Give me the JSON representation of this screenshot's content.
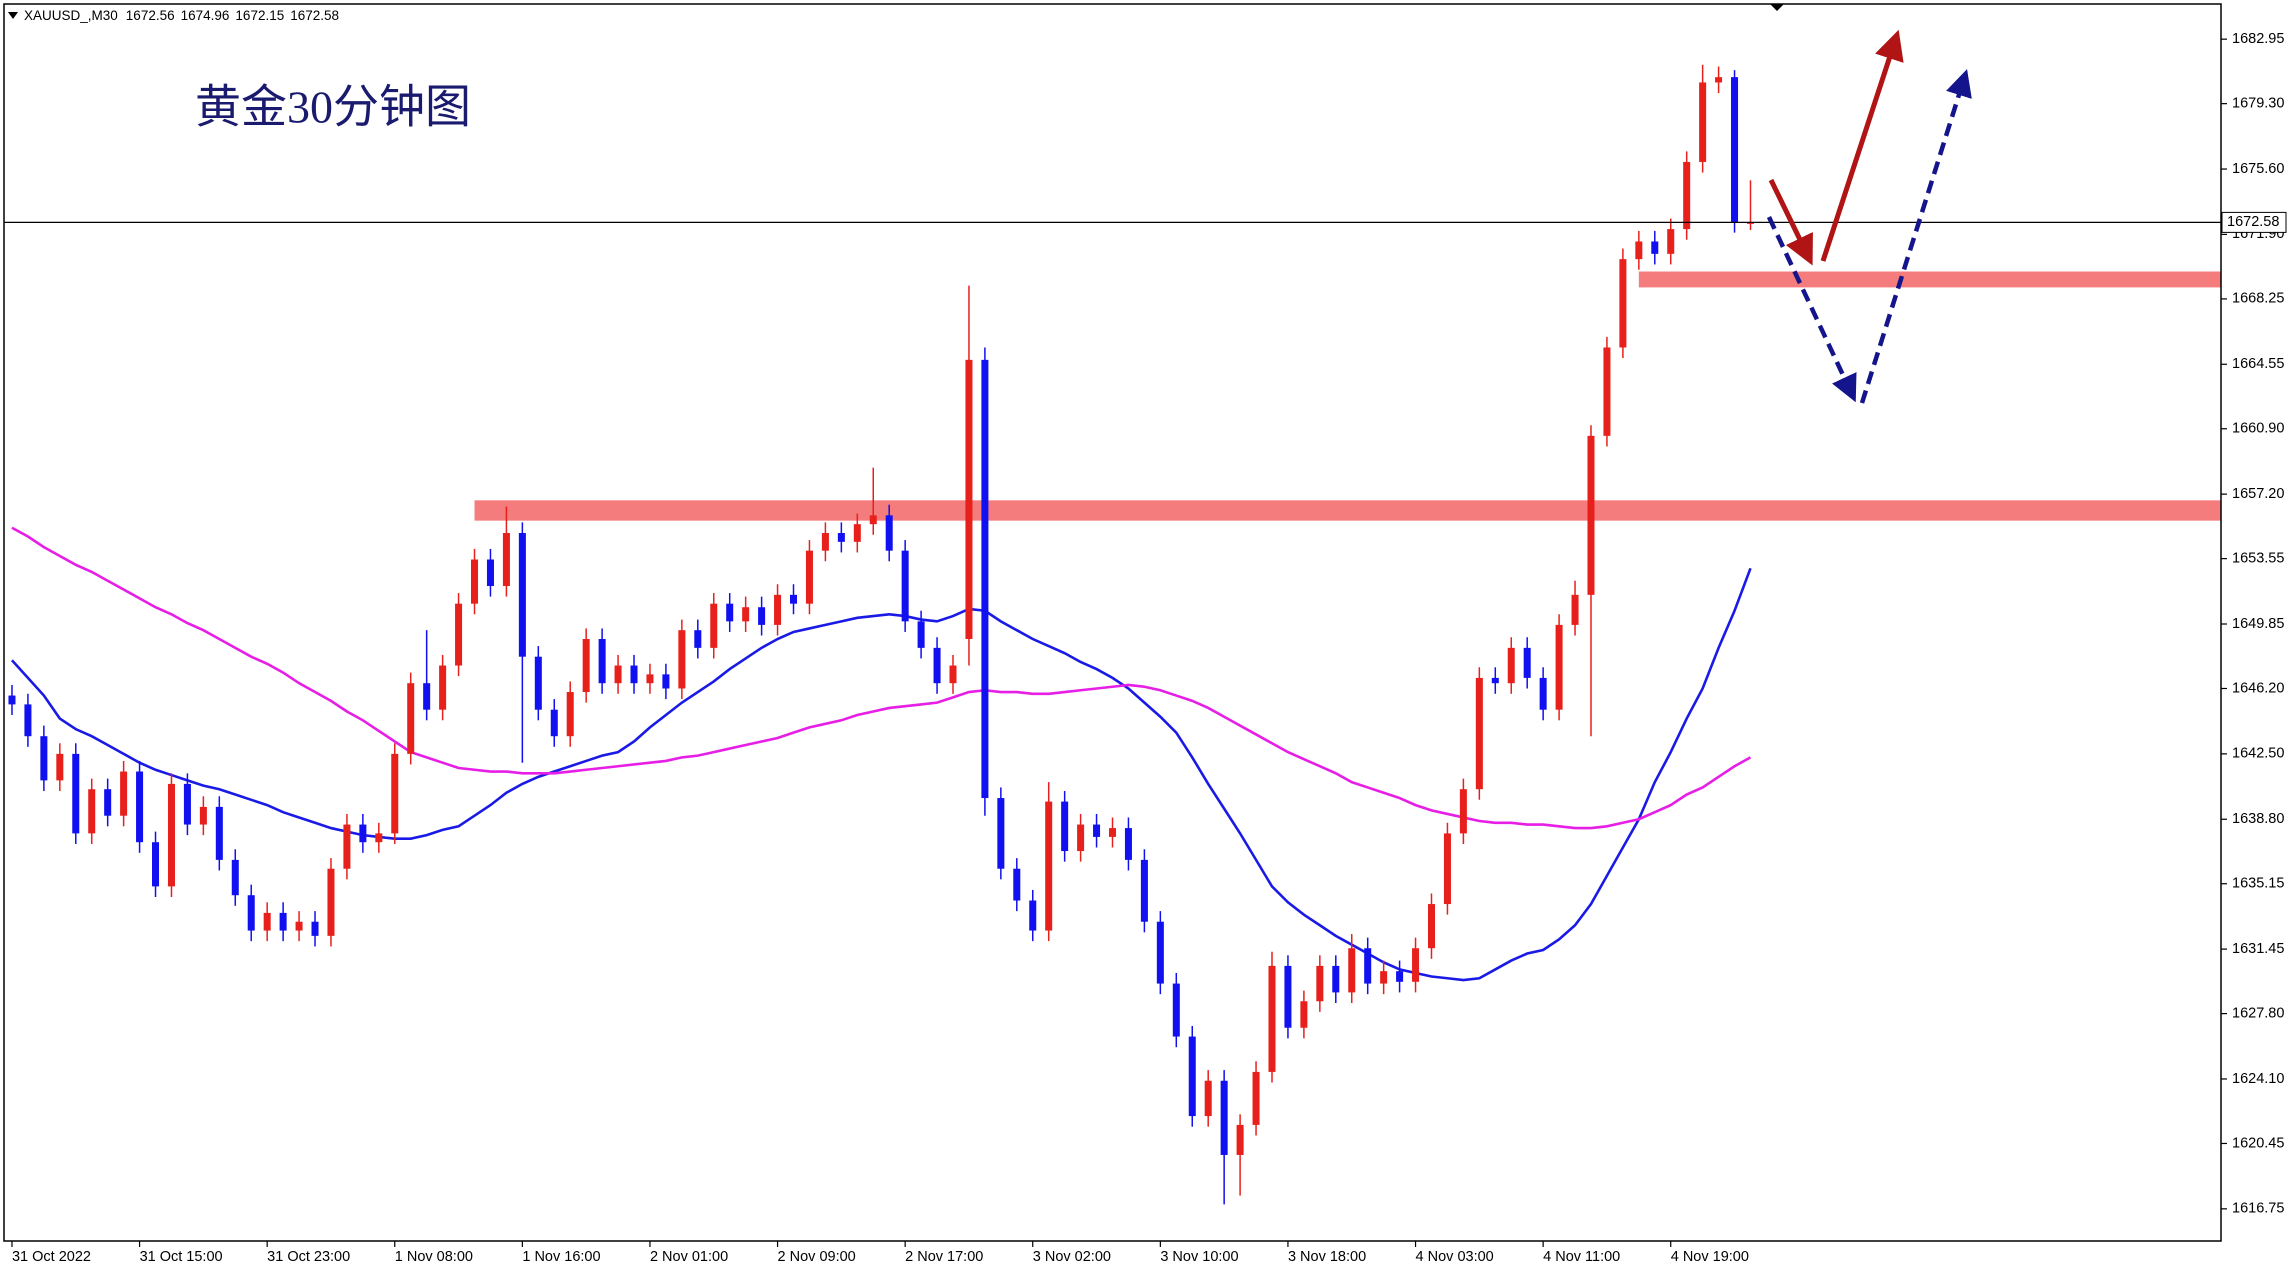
{
  "chart_data": {
    "type": "candlestick",
    "symbol": "XAUUSD_,M30",
    "title": "黄金30分钟图",
    "up_color": "#e8201c",
    "down_color": "#1010f0",
    "xlim": [
      -0.5,
      138.5
    ],
    "ylim": [
      1614.93,
      1684.94
    ],
    "xticks": [
      {
        "value": 0,
        "label": "31 Oct 2022"
      },
      {
        "value": 8,
        "label": "31 Oct 15:00"
      },
      {
        "value": 16,
        "label": "31 Oct 23:00"
      },
      {
        "value": 24,
        "label": "1 Nov 08:00"
      },
      {
        "value": 32,
        "label": "1 Nov 16:00"
      },
      {
        "value": 40,
        "label": "2 Nov 01:00"
      },
      {
        "value": 48,
        "label": "2 Nov 09:00"
      },
      {
        "value": 56,
        "label": "2 Nov 17:00"
      },
      {
        "value": 64,
        "label": "3 Nov 02:00"
      },
      {
        "value": 72,
        "label": "3 Nov 10:00"
      },
      {
        "value": 80,
        "label": "3 Nov 18:00"
      },
      {
        "value": 88,
        "label": "4 Nov 03:00"
      },
      {
        "value": 96,
        "label": "4 Nov 11:00"
      },
      {
        "value": 104,
        "label": "4 Nov 19:00"
      }
    ],
    "yticks": [
      1682.95,
      {
        "value": 1679.3,
        "label": "1679.30"
      },
      {
        "value": 1675.6,
        "label": "1675.60"
      },
      {
        "value": 1671.9,
        "label": "1671.90"
      },
      1668.25,
      1664.55,
      {
        "value": 1660.9,
        "label": "1660.90"
      },
      {
        "value": 1657.2,
        "label": "1657.20"
      },
      1653.55,
      1649.85,
      {
        "value": 1646.2,
        "label": "1646.20"
      },
      {
        "value": 1642.5,
        "label": "1642.50"
      },
      {
        "value": 1638.8,
        "label": "1638.80"
      },
      1635.15,
      1631.45,
      {
        "value": 1627.8,
        "label": "1627.80"
      },
      {
        "value": 1624.1,
        "label": "1624.10"
      },
      1620.45,
      1616.75
    ],
    "open": [
      1645.8,
      1645.3,
      1643.5,
      1641,
      1642.5,
      1638,
      1640.5,
      1639,
      1641.5,
      1637.5,
      1635,
      1640.8,
      1638.5,
      1639.5,
      1636.5,
      1634.5,
      1632.5,
      1633.5,
      1632.5,
      1633,
      1632.2,
      1636,
      1638.5,
      1637.5,
      1638,
      1642.5,
      1646.5,
      1645,
      1647.5,
      1651,
      1653.5,
      1652,
      1655,
      1648,
      1645,
      1643.5,
      1646,
      1649,
      1646.5,
      1647.5,
      1646.5,
      1647,
      1646.2,
      1649.5,
      1648.5,
      1651,
      1650,
      1650.8,
      1649.8,
      1651.5,
      1651,
      1654,
      1655,
      1654.5,
      1655.5,
      1656,
      1654,
      1650,
      1648.5,
      1646.5,
      1649,
      1664.8,
      1640,
      1636,
      1634.2,
      1632.5,
      1639.8,
      1637,
      1638.5,
      1637.8,
      1638.3,
      1636.5,
      1633,
      1629.5,
      1626.5,
      1622,
      1624,
      1619.8,
      1621.5,
      1624.5,
      1630.5,
      1627,
      1628.5,
      1630.5,
      1629,
      1631.5,
      1629.5,
      1630.2,
      1629.6,
      1631.5,
      1634,
      1638,
      1640.5,
      1646.8,
      1646.5,
      1648.5,
      1646.8,
      1645,
      1649.8,
      1651.5,
      1660.5,
      1665.5,
      1670.5,
      1671.5,
      1670.8,
      1672.2,
      1676,
      1680.5,
      1680.8,
      1672.56
    ],
    "high": [
      1646.4,
      1645.9,
      1644.1,
      1643.1,
      1643.1,
      1641.1,
      1641.1,
      1642.1,
      1642.1,
      1638.1,
      1641.4,
      1641.4,
      1640.1,
      1640.1,
      1637.1,
      1635.1,
      1634.1,
      1634.1,
      1633.6,
      1633.6,
      1636.6,
      1639.1,
      1639.1,
      1638.6,
      1643.1,
      1647.1,
      1649.5,
      1648.1,
      1651.6,
      1654.1,
      1654.1,
      1656.5,
      1655.6,
      1648.6,
      1645.6,
      1646.6,
      1649.6,
      1649.6,
      1648.1,
      1648.1,
      1647.6,
      1647.6,
      1650.1,
      1650.1,
      1651.6,
      1651.6,
      1651.4,
      1651.4,
      1652.1,
      1652.1,
      1654.6,
      1655.6,
      1655.6,
      1656.1,
      1658.7,
      1656.6,
      1654.6,
      1650.6,
      1649.1,
      1648.1,
      1669,
      1665.5,
      1640.6,
      1636.6,
      1634.8,
      1640.9,
      1640.4,
      1639.1,
      1639.1,
      1638.9,
      1638.9,
      1637.1,
      1633.6,
      1630.1,
      1627.1,
      1624.6,
      1624.6,
      1622.1,
      1625.1,
      1631.3,
      1631.1,
      1629.1,
      1631.1,
      1631.1,
      1632.3,
      1632.1,
      1630.8,
      1630.8,
      1632.1,
      1634.6,
      1638.6,
      1641.1,
      1647.4,
      1647.4,
      1649.1,
      1649.1,
      1647.4,
      1650.4,
      1652.3,
      1661.1,
      1666.1,
      1671.1,
      1672.1,
      1672.1,
      1672.8,
      1676.6,
      1681.5,
      1681.4,
      1681.2,
      1674.96
    ],
    "low": [
      1644.7,
      1642.9,
      1640.4,
      1640.4,
      1637.4,
      1637.4,
      1638.4,
      1638.4,
      1636.9,
      1634.4,
      1634.4,
      1637.9,
      1637.9,
      1635.9,
      1633.9,
      1631.9,
      1631.9,
      1631.9,
      1631.9,
      1631.6,
      1631.6,
      1635.4,
      1636.9,
      1636.9,
      1637.4,
      1641.9,
      1644.4,
      1644.4,
      1646.9,
      1650.4,
      1651.4,
      1651.4,
      1642,
      1644.4,
      1642.9,
      1642.9,
      1645.4,
      1645.9,
      1645.9,
      1645.9,
      1645.9,
      1645.6,
      1645.6,
      1647.9,
      1647.9,
      1649.4,
      1649.4,
      1649.2,
      1649.2,
      1650.4,
      1650.4,
      1653.4,
      1653.9,
      1653.9,
      1654.9,
      1653.4,
      1649.4,
      1647.9,
      1645.9,
      1645.9,
      1647.5,
      1639,
      1635.4,
      1633.6,
      1631.9,
      1631.9,
      1636.4,
      1636.4,
      1637.2,
      1637.2,
      1635.9,
      1632.4,
      1628.9,
      1625.9,
      1621.4,
      1621.4,
      1617,
      1617.5,
      1620.9,
      1623.9,
      1626.4,
      1626.4,
      1627.9,
      1628.4,
      1628.4,
      1628.9,
      1628.9,
      1629,
      1629,
      1630.9,
      1633.4,
      1637.4,
      1639.9,
      1645.9,
      1645.9,
      1646.2,
      1644.4,
      1644.4,
      1649.2,
      1643.5,
      1659.9,
      1664.9,
      1669.9,
      1670.2,
      1670.2,
      1671.6,
      1675.4,
      1679.9,
      1672,
      1672.15
    ],
    "close": [
      1645.3,
      1643.5,
      1641,
      1642.5,
      1638,
      1640.5,
      1639,
      1641.5,
      1637.5,
      1635,
      1640.8,
      1638.5,
      1639.5,
      1636.5,
      1634.5,
      1632.5,
      1633.5,
      1632.5,
      1633,
      1632.2,
      1636,
      1638.5,
      1637.5,
      1638,
      1642.5,
      1646.5,
      1645,
      1647.5,
      1651,
      1653.5,
      1652,
      1655,
      1648,
      1645,
      1643.5,
      1646,
      1649,
      1646.5,
      1647.5,
      1646.5,
      1647,
      1646.2,
      1649.5,
      1648.5,
      1651,
      1650,
      1650.8,
      1649.8,
      1651.5,
      1651,
      1654,
      1655,
      1654.5,
      1655.5,
      1656,
      1654,
      1650,
      1648.5,
      1646.5,
      1647.5,
      1664.8,
      1640,
      1636,
      1634.2,
      1632.5,
      1639.8,
      1637,
      1638.5,
      1637.8,
      1638.3,
      1636.5,
      1633,
      1629.5,
      1626.5,
      1622,
      1624,
      1619.8,
      1621.5,
      1624.5,
      1630.5,
      1627,
      1628.5,
      1630.5,
      1629,
      1631.5,
      1629.5,
      1630.2,
      1629.6,
      1631.5,
      1634,
      1638,
      1640.5,
      1646.8,
      1646.5,
      1648.5,
      1646.8,
      1645,
      1649.8,
      1651.5,
      1660.5,
      1665.5,
      1670.5,
      1671.5,
      1670.8,
      1672.2,
      1676,
      1680.5,
      1680.8,
      1672.6,
      1672.58
    ],
    "series": [
      {
        "color": "#1a1ae6",
        "values": [
          1647.8,
          1646.8,
          1645.8,
          1644.5,
          1643.9,
          1643.5,
          1643,
          1642.5,
          1642,
          1641.6,
          1641.3,
          1641,
          1640.7,
          1640.5,
          1640.2,
          1639.9,
          1639.6,
          1639.2,
          1638.9,
          1638.6,
          1638.3,
          1638.1,
          1637.9,
          1637.8,
          1637.7,
          1637.7,
          1637.9,
          1638.2,
          1638.4,
          1639,
          1639.6,
          1640.3,
          1640.8,
          1641.2,
          1641.5,
          1641.8,
          1642.1,
          1642.4,
          1642.6,
          1643.2,
          1644,
          1644.7,
          1645.4,
          1646,
          1646.6,
          1647.3,
          1647.9,
          1648.5,
          1649,
          1649.4,
          1649.6,
          1649.8,
          1650,
          1650.2,
          1650.3,
          1650.4,
          1650.3,
          1650.1,
          1650,
          1650.3,
          1650.7,
          1650.6,
          1650,
          1649.5,
          1649,
          1648.6,
          1648.2,
          1647.7,
          1647.3,
          1646.8,
          1646.2,
          1645.4,
          1644.6,
          1643.7,
          1642.3,
          1640.8,
          1639.4,
          1638,
          1636.5,
          1635,
          1634.1,
          1633.4,
          1632.8,
          1632.2,
          1631.7,
          1631.2,
          1630.7,
          1630.3,
          1630.1,
          1629.9,
          1629.8,
          1629.7,
          1629.8,
          1630.3,
          1630.8,
          1631.2,
          1631.4,
          1632,
          1632.8,
          1634,
          1635.6,
          1637.2,
          1638.8,
          1640.9,
          1642.6,
          1644.5,
          1646.2,
          1648.5,
          1650.6,
          1653
        ]
      },
      {
        "color": "#e61ee6",
        "values": [
          1655.3,
          1654.8,
          1654.2,
          1653.7,
          1653.2,
          1652.8,
          1652.3,
          1651.8,
          1651.3,
          1650.8,
          1650.4,
          1649.9,
          1649.5,
          1649,
          1648.5,
          1648,
          1647.6,
          1647.1,
          1646.5,
          1646,
          1645.5,
          1644.9,
          1644.4,
          1643.8,
          1643.2,
          1642.6,
          1642.3,
          1642,
          1641.7,
          1641.6,
          1641.5,
          1641.5,
          1641.4,
          1641.4,
          1641.4,
          1641.5,
          1641.6,
          1641.7,
          1641.8,
          1641.9,
          1642,
          1642.1,
          1642.3,
          1642.4,
          1642.6,
          1642.8,
          1643,
          1643.2,
          1643.4,
          1643.7,
          1644,
          1644.2,
          1644.4,
          1644.7,
          1644.9,
          1645.1,
          1645.2,
          1645.3,
          1645.4,
          1645.7,
          1646,
          1646.1,
          1646,
          1646,
          1645.9,
          1645.9,
          1646,
          1646.1,
          1646.2,
          1646.3,
          1646.4,
          1646.3,
          1646.1,
          1645.8,
          1645.5,
          1645.1,
          1644.6,
          1644.1,
          1643.6,
          1643.1,
          1642.6,
          1642.2,
          1641.8,
          1641.4,
          1640.9,
          1640.6,
          1640.3,
          1640,
          1639.6,
          1639.3,
          1639.1,
          1638.9,
          1638.7,
          1638.6,
          1638.6,
          1638.5,
          1638.5,
          1638.4,
          1638.3,
          1638.3,
          1638.4,
          1638.6,
          1638.8,
          1639.2,
          1639.6,
          1640.2,
          1640.6,
          1641.2,
          1641.8,
          1642.3
        ]
      }
    ],
    "zones": [
      {
        "start": 102,
        "low": 1668.9,
        "high": 1669.8,
        "color": "#f47c7c"
      },
      {
        "start": 29,
        "low": 1655.7,
        "high": 1656.85,
        "color": "#f47c7c"
      }
    ]
  }
}
